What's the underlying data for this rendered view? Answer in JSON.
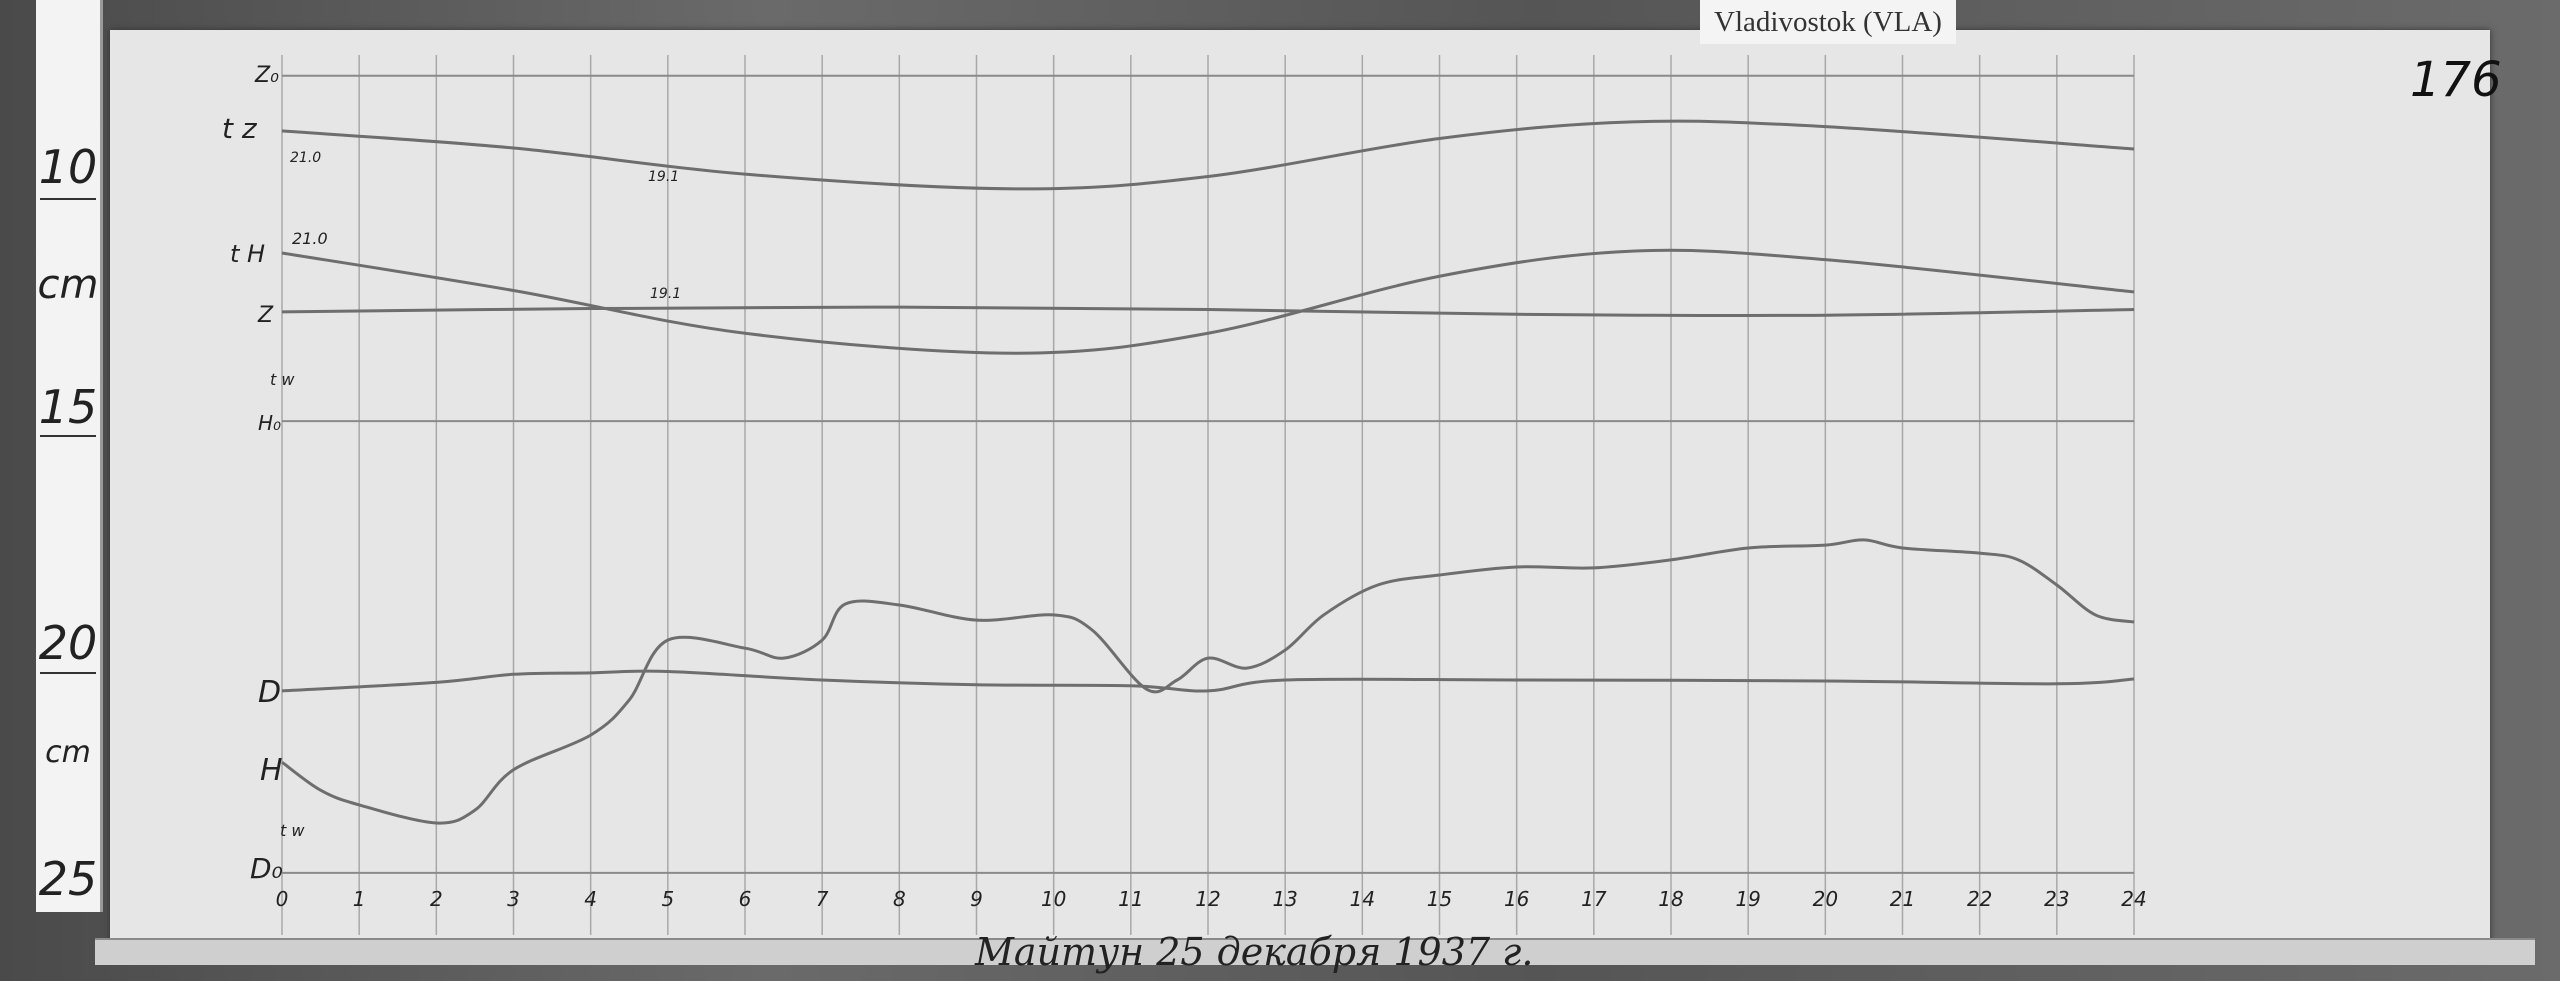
{
  "station_label": "Vladivostok (VLA)",
  "sheet_number": "176",
  "caption": "Майтун 25 декабря 1937 г.",
  "ruler": {
    "unit": "cm",
    "marks": [
      "10",
      "15",
      "20",
      "25"
    ],
    "unit_labels": [
      "cm",
      "cm"
    ]
  },
  "chart_data": {
    "type": "line",
    "title": "",
    "xlabel": "",
    "ylabel": "",
    "x_ticks": [
      "0",
      "1",
      "2",
      "3",
      "4",
      "5",
      "6",
      "7",
      "8",
      "9",
      "10",
      "11",
      "12",
      "13",
      "14",
      "15",
      "16",
      "17",
      "18",
      "19",
      "20",
      "21",
      "22",
      "23",
      "24"
    ],
    "xlim": [
      0,
      24
    ],
    "y_units": "cm (ruler position)",
    "ylim": [
      7.5,
      25.5
    ],
    "grid": "vertical hourly lines",
    "trace_labels": {
      "z0": "Z₀",
      "tz": "t z",
      "tz_start": "21.0",
      "tz_mid": "19.1",
      "th": "t H",
      "th_start": "21.0",
      "th_mid": "19.1",
      "z": "Z",
      "h0": "H₀",
      "d": "D",
      "h": "H",
      "d0": "D₀",
      "tw": "t w"
    },
    "baselines": [
      {
        "name": "Z₀",
        "y": 8.08
      },
      {
        "name": "H₀",
        "y": 15.35
      },
      {
        "name": "D₀",
        "y": 24.86
      }
    ],
    "series": [
      {
        "name": "t z",
        "x": [
          0,
          3,
          6,
          9.5,
          12,
          15,
          17.5,
          20,
          24
        ],
        "y": [
          9.24,
          9.6,
          10.15,
          10.46,
          10.2,
          9.4,
          9.05,
          9.15,
          9.62
        ]
      },
      {
        "name": "t H",
        "x": [
          0,
          3,
          6,
          9.5,
          12,
          15,
          17.5,
          20,
          24
        ],
        "y": [
          11.81,
          12.6,
          13.5,
          13.92,
          13.5,
          12.3,
          11.77,
          11.95,
          12.63
        ]
      },
      {
        "name": "Z",
        "x": [
          0,
          4,
          8,
          12,
          16,
          20,
          24
        ],
        "y": [
          13.05,
          12.98,
          12.95,
          13.0,
          13.1,
          13.12,
          13.0
        ]
      },
      {
        "name": "D",
        "x": [
          0,
          2,
          3,
          4,
          5,
          7,
          9,
          11,
          12,
          13,
          16,
          20,
          23,
          24
        ],
        "y": [
          21.03,
          20.85,
          20.68,
          20.65,
          20.62,
          20.8,
          20.9,
          20.92,
          21.03,
          20.8,
          20.8,
          20.82,
          20.88,
          20.78
        ]
      },
      {
        "name": "H",
        "x": [
          0,
          0.5,
          1,
          2,
          2.5,
          3,
          4,
          4.5,
          5,
          6,
          6.5,
          7,
          7.3,
          8,
          9,
          10,
          10.5,
          11.2,
          11.6,
          12,
          12.5,
          13,
          13.5,
          14.2,
          15,
          16,
          17,
          18,
          19,
          20,
          20.5,
          21,
          22,
          22.5,
          23,
          23.5,
          24
        ],
        "y": [
          22.53,
          23.12,
          23.43,
          23.81,
          23.54,
          22.69,
          21.96,
          21.22,
          19.96,
          20.13,
          20.34,
          19.96,
          19.2,
          19.22,
          19.54,
          19.43,
          19.75,
          20.99,
          20.8,
          20.34,
          20.55,
          20.17,
          19.43,
          18.8,
          18.59,
          18.42,
          18.44,
          18.27,
          18.02,
          17.96,
          17.85,
          18.02,
          18.13,
          18.27,
          18.8,
          19.43,
          19.58
        ]
      }
    ]
  }
}
